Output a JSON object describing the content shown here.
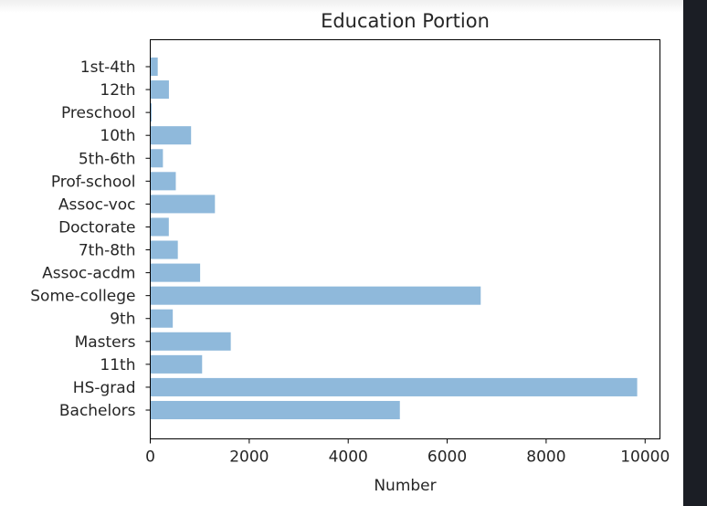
{
  "chart_data": {
    "type": "bar",
    "orientation": "horizontal",
    "title": "Education Portion",
    "xlabel": "Number",
    "ylabel": "",
    "categories": [
      "Bachelors",
      "HS-grad",
      "11th",
      "Masters",
      "9th",
      "Some-college",
      "Assoc-acdm",
      "7th-8th",
      "Doctorate",
      "Assoc-voc",
      "Prof-school",
      "5th-6th",
      "10th",
      "Preschool",
      "12th",
      "1st-4th"
    ],
    "values": [
      5044,
      9840,
      1048,
      1627,
      455,
      6678,
      1008,
      557,
      375,
      1307,
      516,
      256,
      825,
      29,
      377,
      151
    ],
    "xlim": [
      0,
      10300
    ],
    "xticks": [
      0,
      2000,
      4000,
      6000,
      8000,
      10000
    ],
    "xtick_labels": [
      "0",
      "2000",
      "4000",
      "6000",
      "8000",
      "10000"
    ],
    "bar_color": "#8fb9db",
    "grid": false
  }
}
